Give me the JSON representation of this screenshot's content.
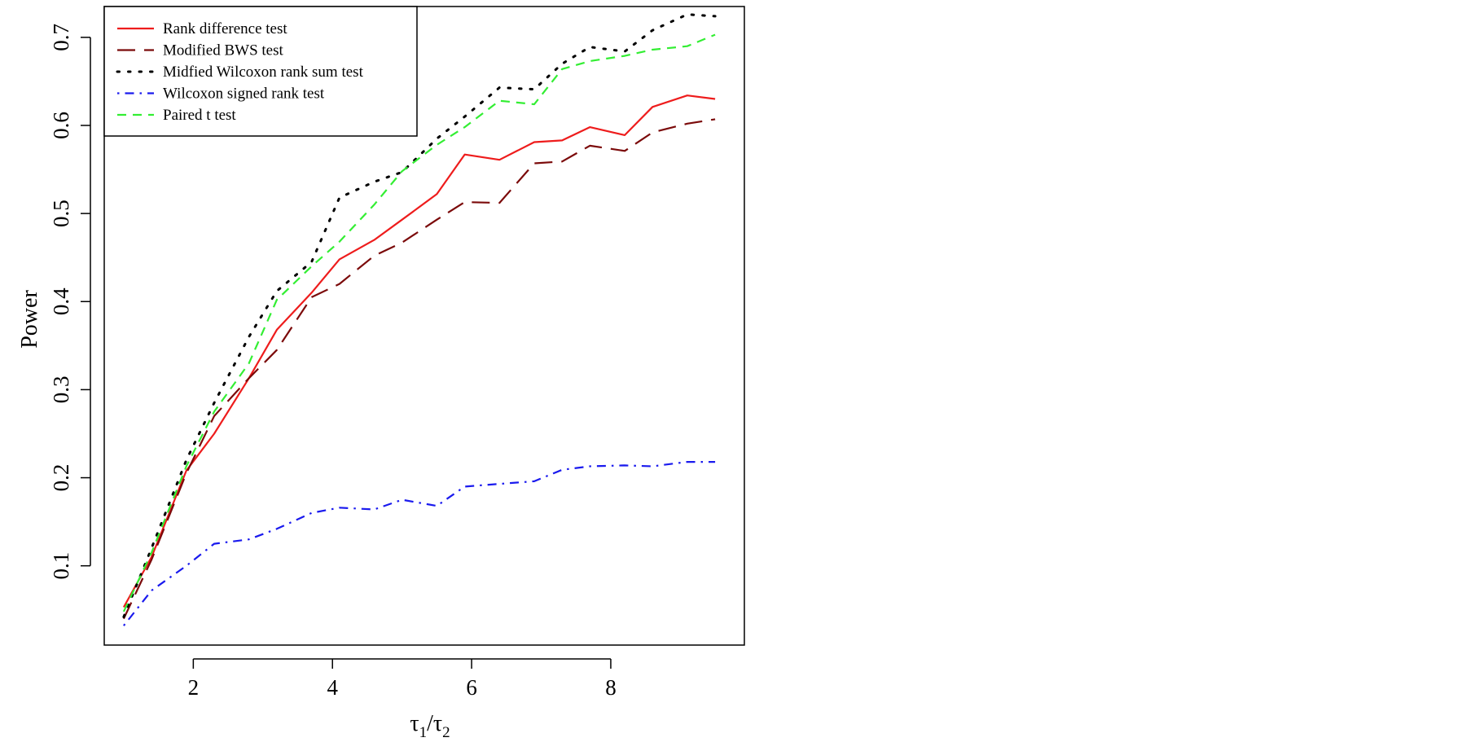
{
  "chart_data": {
    "type": "line",
    "xlabel": "τ1/τ2",
    "ylabel": "Power",
    "xlim": [
      0.72,
      9.92
    ],
    "ylim": [
      0.01,
      0.735
    ],
    "xticks": [
      2,
      4,
      6,
      8
    ],
    "yticks": [
      0.1,
      0.2,
      0.3,
      0.4,
      0.5,
      0.6,
      0.7
    ],
    "grid": false,
    "legend_position": "top-left",
    "x": [
      1.0,
      1.4,
      1.9,
      2.3,
      2.8,
      3.2,
      3.7,
      4.1,
      4.6,
      5.0,
      5.5,
      5.9,
      6.4,
      6.9,
      7.3,
      7.7,
      8.2,
      8.6,
      9.1,
      9.5
    ],
    "series": [
      {
        "name": "Rank difference test",
        "color": "#ee1c1c",
        "dash": "solid",
        "values": [
          0.053,
          0.11,
          0.208,
          0.25,
          0.313,
          0.368,
          0.41,
          0.448,
          0.47,
          0.493,
          0.522,
          0.567,
          0.561,
          0.581,
          0.583,
          0.598,
          0.589,
          0.621,
          0.634,
          0.63
        ]
      },
      {
        "name": "Modified BWS test",
        "color": "#7b0a0a",
        "dash": "longdash",
        "values": [
          0.04,
          0.107,
          0.205,
          0.27,
          0.313,
          0.345,
          0.405,
          0.42,
          0.452,
          0.467,
          0.493,
          0.513,
          0.512,
          0.557,
          0.559,
          0.577,
          0.571,
          0.592,
          0.602,
          0.607
        ]
      },
      {
        "name": "Midfied Wilcoxon rank sum test",
        "color": "#000000",
        "dash": "dotted",
        "values": [
          0.042,
          0.12,
          0.22,
          0.285,
          0.36,
          0.412,
          0.445,
          0.518,
          0.536,
          0.547,
          0.585,
          0.61,
          0.643,
          0.641,
          0.67,
          0.689,
          0.684,
          0.708,
          0.726,
          0.724
        ]
      },
      {
        "name": "Wilcoxon signed rank test",
        "color": "#1a1aee",
        "dash": "dotdash",
        "values": [
          0.032,
          0.072,
          0.1,
          0.125,
          0.13,
          0.142,
          0.16,
          0.166,
          0.164,
          0.175,
          0.168,
          0.19,
          0.193,
          0.196,
          0.209,
          0.213,
          0.214,
          0.213,
          0.218,
          0.218
        ]
      },
      {
        "name": "Paired t test",
        "color": "#33ee33",
        "dash": "dashed",
        "values": [
          0.048,
          0.115,
          0.213,
          0.275,
          0.33,
          0.402,
          0.44,
          0.468,
          0.51,
          0.548,
          0.578,
          0.598,
          0.628,
          0.624,
          0.664,
          0.673,
          0.679,
          0.686,
          0.69,
          0.703
        ]
      }
    ]
  }
}
